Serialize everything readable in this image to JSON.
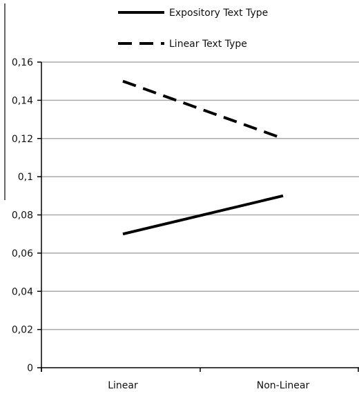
{
  "chart_data": {
    "type": "line",
    "categories": [
      "Linear",
      "Non-Linear"
    ],
    "series": [
      {
        "name": "Expository Text Type",
        "values": [
          0.07,
          0.09
        ],
        "line_style": "solid",
        "color": "#000000"
      },
      {
        "name": "Linear Text Type",
        "values": [
          0.15,
          0.12
        ],
        "line_style": "dashed",
        "color": "#000000"
      }
    ],
    "ylim": [
      0,
      0.16
    ],
    "yticks": [
      "0",
      "0,02",
      "0,04",
      "0,06",
      "0,08",
      "0,1",
      "0,12",
      "0,14",
      "0,16"
    ],
    "ytick_values": [
      0,
      0.02,
      0.04,
      0.06,
      0.08,
      0.1,
      0.12,
      0.14,
      0.16
    ],
    "grid": true,
    "grid_color": "#aaaaaa",
    "legend_position": "top"
  }
}
